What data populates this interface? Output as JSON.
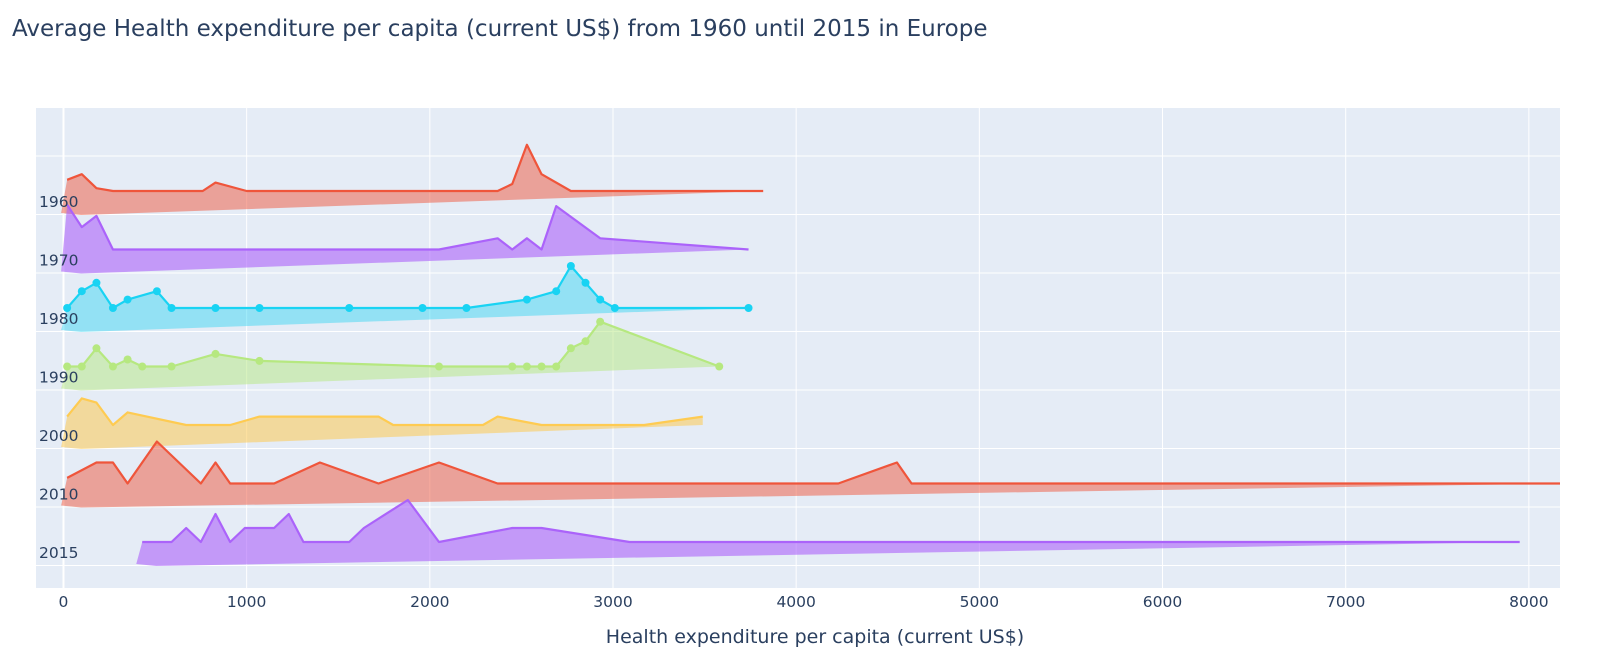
{
  "chart_data": {
    "type": "area",
    "title": "Average Health expenditure per capita (current US$) from 1960 until 2015 in Europe",
    "xlabel": "Health expenditure per capita (current US$)",
    "ylabel": "",
    "xlim": [
      -150,
      8170
    ],
    "xticks": [
      0,
      1000,
      2000,
      3000,
      4000,
      5000,
      6000,
      7000,
      8000
    ],
    "grid": true,
    "legend": "none",
    "colors": {
      "plot_bg": "#e5ecf6",
      "grid": "#ffffff",
      "text": "#2a3f5f"
    },
    "series": [
      {
        "name": "1960",
        "color": "#EF553B",
        "fill": "rgba(239,85,59,0.5)",
        "markers": false,
        "x": [
          20,
          100,
          180,
          270,
          760,
          830,
          1000,
          2370,
          2450,
          2530,
          2610,
          2770,
          3820
        ],
        "y": [
          0.8,
          1.2,
          0.2,
          0,
          0,
          0.6,
          0,
          0,
          0.5,
          3.3,
          1.2,
          0,
          0
        ]
      },
      {
        "name": "1970",
        "color": "#AB63FA",
        "fill": "rgba(171,99,250,0.6)",
        "markers": false,
        "x": [
          20,
          100,
          180,
          270,
          2050,
          2370,
          2450,
          2530,
          2610,
          2690,
          2930,
          3740
        ],
        "y": [
          3.2,
          1.6,
          2.4,
          0,
          0,
          0.8,
          0,
          0.8,
          0,
          3.1,
          0.8,
          0
        ]
      },
      {
        "name": "1980",
        "color": "#19D3F3",
        "fill": "rgba(25,211,243,0.4)",
        "markers": true,
        "x": [
          20,
          100,
          180,
          270,
          350,
          510,
          590,
          830,
          1070,
          1560,
          1960,
          2200,
          2530,
          2690,
          2770,
          2850,
          2930,
          3010,
          3740
        ],
        "y": [
          0,
          1.2,
          1.8,
          0,
          0.6,
          1.2,
          0,
          0,
          0,
          0,
          0,
          0,
          0.6,
          1.2,
          3.0,
          1.8,
          0.6,
          0,
          0
        ]
      },
      {
        "name": "1990",
        "color": "#B6E880",
        "fill": "rgba(182,232,128,0.5)",
        "markers": true,
        "x": [
          20,
          100,
          180,
          270,
          350,
          430,
          590,
          830,
          1070,
          2050,
          2450,
          2530,
          2610,
          2690,
          2770,
          2850,
          2930,
          3580
        ],
        "y": [
          0,
          0,
          1.3,
          0,
          0.5,
          0,
          0,
          0.9,
          0.4,
          0,
          0,
          0,
          0,
          0,
          1.3,
          1.8,
          3.2,
          0
        ]
      },
      {
        "name": "2000",
        "color": "#FECB52",
        "fill": "rgba(254,203,82,0.55)",
        "markers": false,
        "x": [
          20,
          100,
          180,
          270,
          350,
          670,
          910,
          1070,
          1720,
          1800,
          2290,
          2370,
          2610,
          3170,
          3490
        ],
        "y": [
          0.6,
          1.9,
          1.6,
          0,
          0.9,
          0,
          0,
          0.6,
          0.6,
          0,
          0,
          0.6,
          0,
          0,
          0.6
        ]
      },
      {
        "name": "2010",
        "color": "#EF553B",
        "fill": "rgba(239,85,59,0.5)",
        "markers": false,
        "x": [
          20,
          180,
          270,
          350,
          510,
          750,
          830,
          910,
          1150,
          1400,
          1720,
          2050,
          2370,
          4230,
          4550,
          4630,
          8170
        ],
        "y": [
          0.4,
          1.5,
          1.5,
          0,
          3.0,
          0,
          1.5,
          0,
          0,
          1.5,
          0,
          1.5,
          0,
          0,
          1.5,
          0,
          0
        ]
      },
      {
        "name": "2015",
        "color": "#AB63FA",
        "fill": "rgba(171,99,250,0.6)",
        "markers": false,
        "x": [
          430,
          590,
          670,
          750,
          830,
          910,
          990,
          1150,
          1230,
          1310,
          1560,
          1640,
          1880,
          2050,
          2450,
          2610,
          3090,
          7950
        ],
        "y": [
          0,
          0,
          1.0,
          0,
          2.0,
          0,
          1.0,
          1.0,
          2.0,
          0,
          0,
          1.0,
          3.0,
          0,
          1.0,
          1.0,
          0,
          0
        ]
      }
    ]
  }
}
